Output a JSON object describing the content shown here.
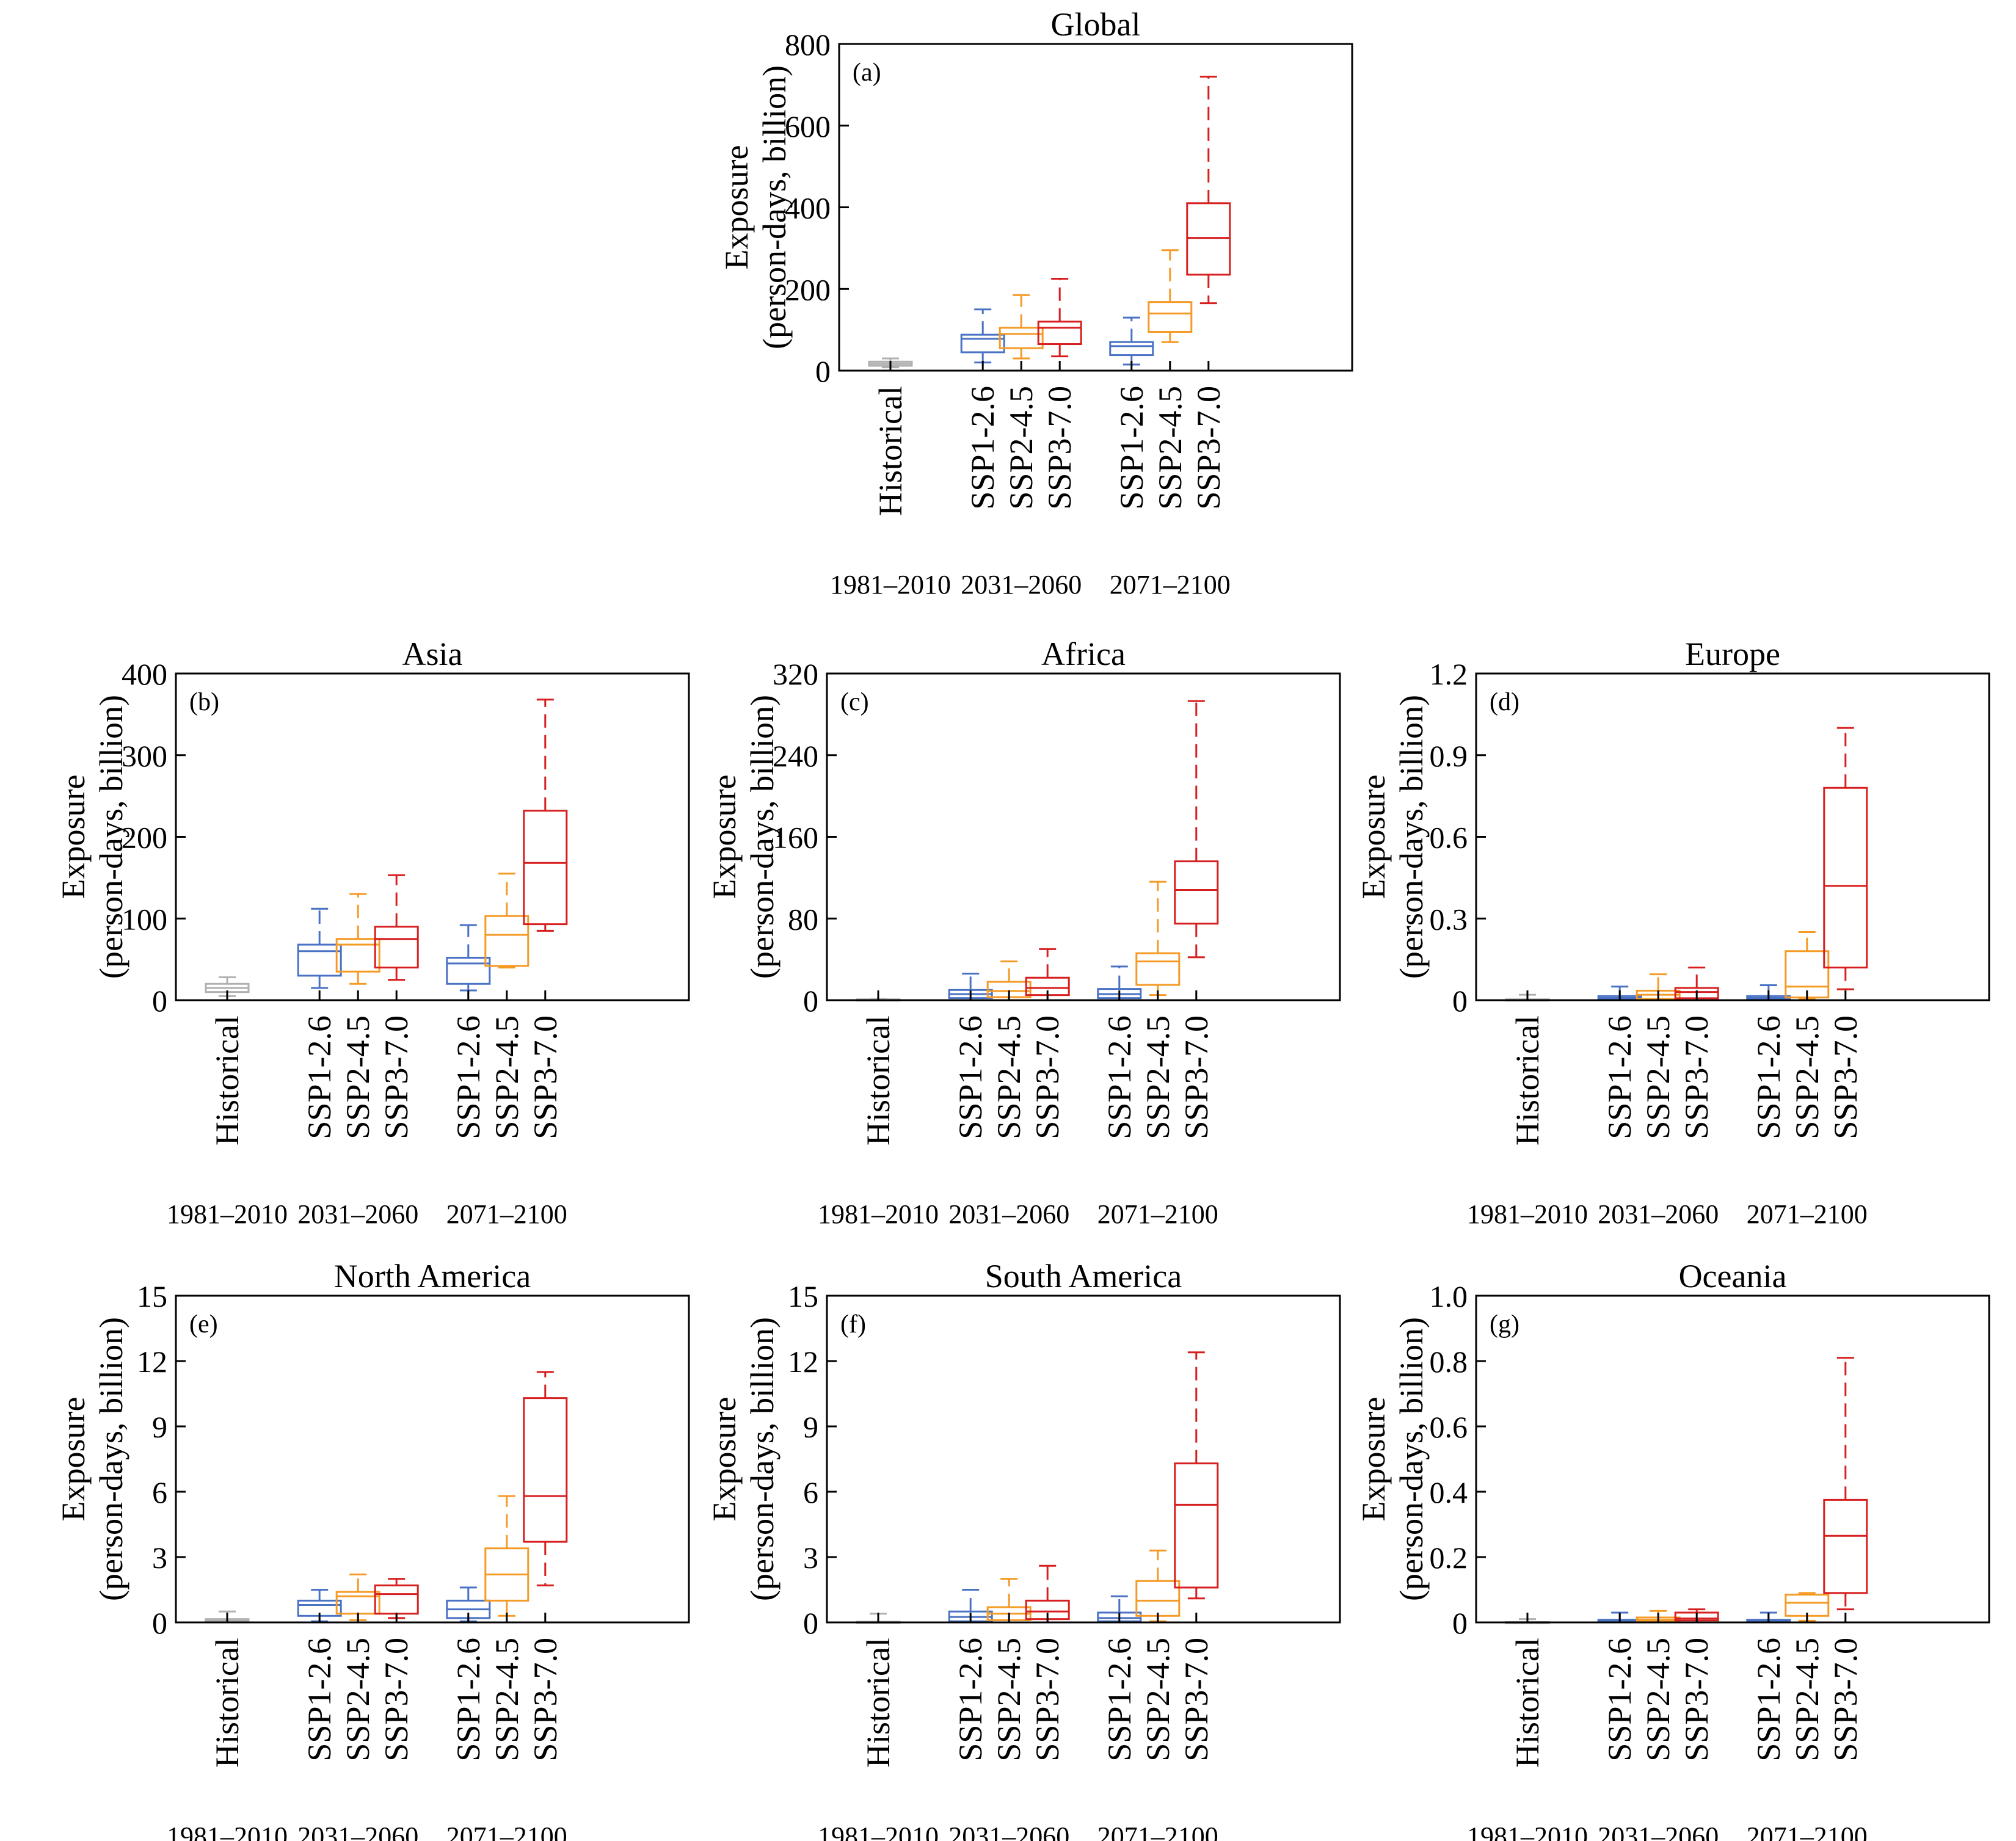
{
  "colors": {
    "historical": "#b0b0b0",
    "ssp126": "#4a72c4",
    "ssp245": "#f59a25",
    "ssp370": "#d71f1f",
    "axis": "#000000"
  },
  "ylabel_line1": "Exposure",
  "ylabel_line2": "(person-days, billion)",
  "categories": [
    "Historical",
    "SSP1-2.6",
    "SSP2-4.5",
    "SSP3-7.0",
    "SSP1-2.6",
    "SSP2-4.5",
    "SSP3-7.0"
  ],
  "periods": [
    "1981–2010",
    "2031–2060",
    "2071–2100"
  ],
  "chart_data": [
    {
      "type": "box",
      "panel": "(a)",
      "title": "Global",
      "ylim": [
        0,
        800
      ],
      "yticks": [
        0,
        200,
        400,
        600,
        800
      ],
      "ytick_labels": [
        "0",
        "200",
        "400",
        "600",
        "800"
      ],
      "boxes": [
        {
          "category": "Historical",
          "period": "1981–2010",
          "min": 8,
          "q1": 12,
          "median": 17,
          "q3": 22,
          "max": 30
        },
        {
          "category": "SSP1-2.6",
          "period": "2031–2060",
          "min": 20,
          "q1": 45,
          "median": 78,
          "q3": 88,
          "max": 150
        },
        {
          "category": "SSP2-4.5",
          "period": "2031–2060",
          "min": 30,
          "q1": 55,
          "median": 90,
          "q3": 105,
          "max": 185
        },
        {
          "category": "SSP3-7.0",
          "period": "2031–2060",
          "min": 35,
          "q1": 65,
          "median": 105,
          "q3": 120,
          "max": 225
        },
        {
          "category": "SSP1-2.6",
          "period": "2071–2100",
          "min": 15,
          "q1": 38,
          "median": 60,
          "q3": 70,
          "max": 130
        },
        {
          "category": "SSP2-4.5",
          "period": "2071–2100",
          "min": 70,
          "q1": 95,
          "median": 140,
          "q3": 168,
          "max": 295
        },
        {
          "category": "SSP3-7.0",
          "period": "2071–2100",
          "min": 165,
          "q1": 235,
          "median": 325,
          "q3": 410,
          "max": 720
        }
      ]
    },
    {
      "type": "box",
      "panel": "(b)",
      "title": "Asia",
      "ylim": [
        0,
        400
      ],
      "yticks": [
        0,
        100,
        200,
        300,
        400
      ],
      "ytick_labels": [
        "0",
        "100",
        "200",
        "300",
        "400"
      ],
      "boxes": [
        {
          "category": "Historical",
          "period": "1981–2010",
          "min": 5,
          "q1": 10,
          "median": 15,
          "q3": 20,
          "max": 28
        },
        {
          "category": "SSP1-2.6",
          "period": "2031–2060",
          "min": 15,
          "q1": 30,
          "median": 60,
          "q3": 68,
          "max": 112
        },
        {
          "category": "SSP2-4.5",
          "period": "2031–2060",
          "min": 20,
          "q1": 35,
          "median": 68,
          "q3": 75,
          "max": 130
        },
        {
          "category": "SSP3-7.0",
          "period": "2031–2060",
          "min": 25,
          "q1": 40,
          "median": 75,
          "q3": 90,
          "max": 153
        },
        {
          "category": "SSP1-2.6",
          "period": "2071–2100",
          "min": 12,
          "q1": 20,
          "median": 45,
          "q3": 52,
          "max": 92
        },
        {
          "category": "SSP2-4.5",
          "period": "2071–2100",
          "min": 40,
          "q1": 42,
          "median": 80,
          "q3": 103,
          "max": 155
        },
        {
          "category": "SSP3-7.0",
          "period": "2071–2100",
          "min": 85,
          "q1": 93,
          "median": 168,
          "q3": 232,
          "max": 368
        }
      ]
    },
    {
      "type": "box",
      "panel": "(c)",
      "title": "Africa",
      "ylim": [
        0,
        320
      ],
      "yticks": [
        0,
        80,
        160,
        240,
        320
      ],
      "ytick_labels": [
        "0",
        "80",
        "160",
        "240",
        "320"
      ],
      "boxes": [
        {
          "category": "Historical",
          "period": "1981–2010",
          "min": 0,
          "q1": 0.2,
          "median": 0.5,
          "q3": 0.8,
          "max": 1.2
        },
        {
          "category": "SSP1-2.6",
          "period": "2031–2060",
          "min": 0,
          "q1": 2,
          "median": 6,
          "q3": 10,
          "max": 26
        },
        {
          "category": "SSP2-4.5",
          "period": "2031–2060",
          "min": 0,
          "q1": 3,
          "median": 9,
          "q3": 18,
          "max": 38
        },
        {
          "category": "SSP3-7.0",
          "period": "2031–2060",
          "min": 0,
          "q1": 5,
          "median": 12,
          "q3": 22,
          "max": 50
        },
        {
          "category": "SSP1-2.6",
          "period": "2071–2100",
          "min": 0,
          "q1": 2,
          "median": 6,
          "q3": 11,
          "max": 33
        },
        {
          "category": "SSP2-4.5",
          "period": "2071–2100",
          "min": 5,
          "q1": 15,
          "median": 38,
          "q3": 46,
          "max": 116
        },
        {
          "category": "SSP3-7.0",
          "period": "2071–2100",
          "min": 42,
          "q1": 75,
          "median": 108,
          "q3": 136,
          "max": 293
        }
      ]
    },
    {
      "type": "box",
      "panel": "(d)",
      "title": "Europe",
      "ylim": [
        0,
        1.2
      ],
      "yticks": [
        0,
        0.3,
        0.6,
        0.9,
        1.2
      ],
      "ytick_labels": [
        "0",
        "0.3",
        "0.6",
        "0.9",
        "1.2"
      ],
      "boxes": [
        {
          "category": "Historical",
          "period": "1981–2010",
          "min": 0,
          "q1": 0.001,
          "median": 0.002,
          "q3": 0.003,
          "max": 0.02
        },
        {
          "category": "SSP1-2.6",
          "period": "2031–2060",
          "min": 0,
          "q1": 0.003,
          "median": 0.008,
          "q3": 0.015,
          "max": 0.05
        },
        {
          "category": "SSP2-4.5",
          "period": "2031–2060",
          "min": 0,
          "q1": 0.005,
          "median": 0.02,
          "q3": 0.035,
          "max": 0.095
        },
        {
          "category": "SSP3-7.0",
          "period": "2031–2060",
          "min": 0,
          "q1": 0.007,
          "median": 0.03,
          "q3": 0.045,
          "max": 0.12
        },
        {
          "category": "SSP1-2.6",
          "period": "2071–2100",
          "min": 0,
          "q1": 0.003,
          "median": 0.008,
          "q3": 0.015,
          "max": 0.055
        },
        {
          "category": "SSP2-4.5",
          "period": "2071–2100",
          "min": 0.005,
          "q1": 0.01,
          "median": 0.05,
          "q3": 0.18,
          "max": 0.25
        },
        {
          "category": "SSP3-7.0",
          "period": "2071–2100",
          "min": 0.04,
          "q1": 0.12,
          "median": 0.42,
          "q3": 0.78,
          "max": 1.0
        }
      ]
    },
    {
      "type": "box",
      "panel": "(e)",
      "title": "North America",
      "ylim": [
        0,
        15
      ],
      "yticks": [
        0,
        3,
        6,
        9,
        12,
        15
      ],
      "ytick_labels": [
        "0",
        "3",
        "6",
        "9",
        "12",
        "15"
      ],
      "boxes": [
        {
          "category": "Historical",
          "period": "1981–2010",
          "min": 0.02,
          "q1": 0.05,
          "median": 0.1,
          "q3": 0.15,
          "max": 0.5
        },
        {
          "category": "SSP1-2.6",
          "period": "2031–2060",
          "min": 0.05,
          "q1": 0.3,
          "median": 0.8,
          "q3": 1.0,
          "max": 1.5
        },
        {
          "category": "SSP2-4.5",
          "period": "2031–2060",
          "min": 0.1,
          "q1": 0.4,
          "median": 1.2,
          "q3": 1.4,
          "max": 2.2
        },
        {
          "category": "SSP3-7.0",
          "period": "2031–2060",
          "min": 0.2,
          "q1": 0.4,
          "median": 1.3,
          "q3": 1.7,
          "max": 2.0
        },
        {
          "category": "SSP1-2.6",
          "period": "2071–2100",
          "min": 0.05,
          "q1": 0.2,
          "median": 0.6,
          "q3": 1.0,
          "max": 1.6
        },
        {
          "category": "SSP2-4.5",
          "period": "2071–2100",
          "min": 0.3,
          "q1": 1.0,
          "median": 2.2,
          "q3": 3.4,
          "max": 5.8
        },
        {
          "category": "SSP3-7.0",
          "period": "2071–2100",
          "min": 1.7,
          "q1": 3.7,
          "median": 5.8,
          "q3": 10.3,
          "max": 11.5
        }
      ]
    },
    {
      "type": "box",
      "panel": "(f)",
      "title": "South America",
      "ylim": [
        0,
        15
      ],
      "yticks": [
        0,
        3,
        6,
        9,
        12,
        15
      ],
      "ytick_labels": [
        "0",
        "3",
        "6",
        "9",
        "12",
        "15"
      ],
      "boxes": [
        {
          "category": "Historical",
          "period": "1981–2010",
          "min": 0,
          "q1": 0.01,
          "median": 0.02,
          "q3": 0.03,
          "max": 0.4
        },
        {
          "category": "SSP1-2.6",
          "period": "2031–2060",
          "min": 0,
          "q1": 0.05,
          "median": 0.25,
          "q3": 0.5,
          "max": 1.5
        },
        {
          "category": "SSP2-4.5",
          "period": "2031–2060",
          "min": 0,
          "q1": 0.1,
          "median": 0.4,
          "q3": 0.7,
          "max": 2.0
        },
        {
          "category": "SSP3-7.0",
          "period": "2031–2060",
          "min": 0,
          "q1": 0.15,
          "median": 0.5,
          "q3": 1.0,
          "max": 2.6
        },
        {
          "category": "SSP1-2.6",
          "period": "2071–2100",
          "min": 0,
          "q1": 0.05,
          "median": 0.2,
          "q3": 0.45,
          "max": 1.2
        },
        {
          "category": "SSP2-4.5",
          "period": "2071–2100",
          "min": 0.05,
          "q1": 0.3,
          "median": 1.0,
          "q3": 1.9,
          "max": 3.3
        },
        {
          "category": "SSP3-7.0",
          "period": "2071–2100",
          "min": 1.1,
          "q1": 1.6,
          "median": 5.4,
          "q3": 7.3,
          "max": 12.4
        }
      ]
    },
    {
      "type": "box",
      "panel": "(g)",
      "title": "Oceania",
      "ylim": [
        0,
        1.0
      ],
      "yticks": [
        0,
        0.2,
        0.4,
        0.6,
        0.8,
        1.0
      ],
      "ytick_labels": [
        "0",
        "0.2",
        "0.4",
        "0.6",
        "0.8",
        "1.0"
      ],
      "boxes": [
        {
          "category": "Historical",
          "period": "1981–2010",
          "min": 0,
          "q1": 0,
          "median": 0.0005,
          "q3": 0.001,
          "max": 0.01
        },
        {
          "category": "SSP1-2.6",
          "period": "2031–2060",
          "min": 0,
          "q1": 0.002,
          "median": 0.005,
          "q3": 0.008,
          "max": 0.03
        },
        {
          "category": "SSP2-4.5",
          "period": "2031–2060",
          "min": 0,
          "q1": 0.004,
          "median": 0.008,
          "q3": 0.015,
          "max": 0.035
        },
        {
          "category": "SSP3-7.0",
          "period": "2031–2060",
          "min": 0,
          "q1": 0.006,
          "median": 0.012,
          "q3": 0.03,
          "max": 0.04
        },
        {
          "category": "SSP1-2.6",
          "period": "2071–2100",
          "min": 0,
          "q1": 0.002,
          "median": 0.005,
          "q3": 0.008,
          "max": 0.03
        },
        {
          "category": "SSP2-4.5",
          "period": "2071–2100",
          "min": 0.005,
          "q1": 0.02,
          "median": 0.06,
          "q3": 0.085,
          "max": 0.09
        },
        {
          "category": "SSP3-7.0",
          "period": "2071–2100",
          "min": 0.04,
          "q1": 0.09,
          "median": 0.265,
          "q3": 0.375,
          "max": 0.81
        }
      ]
    }
  ]
}
